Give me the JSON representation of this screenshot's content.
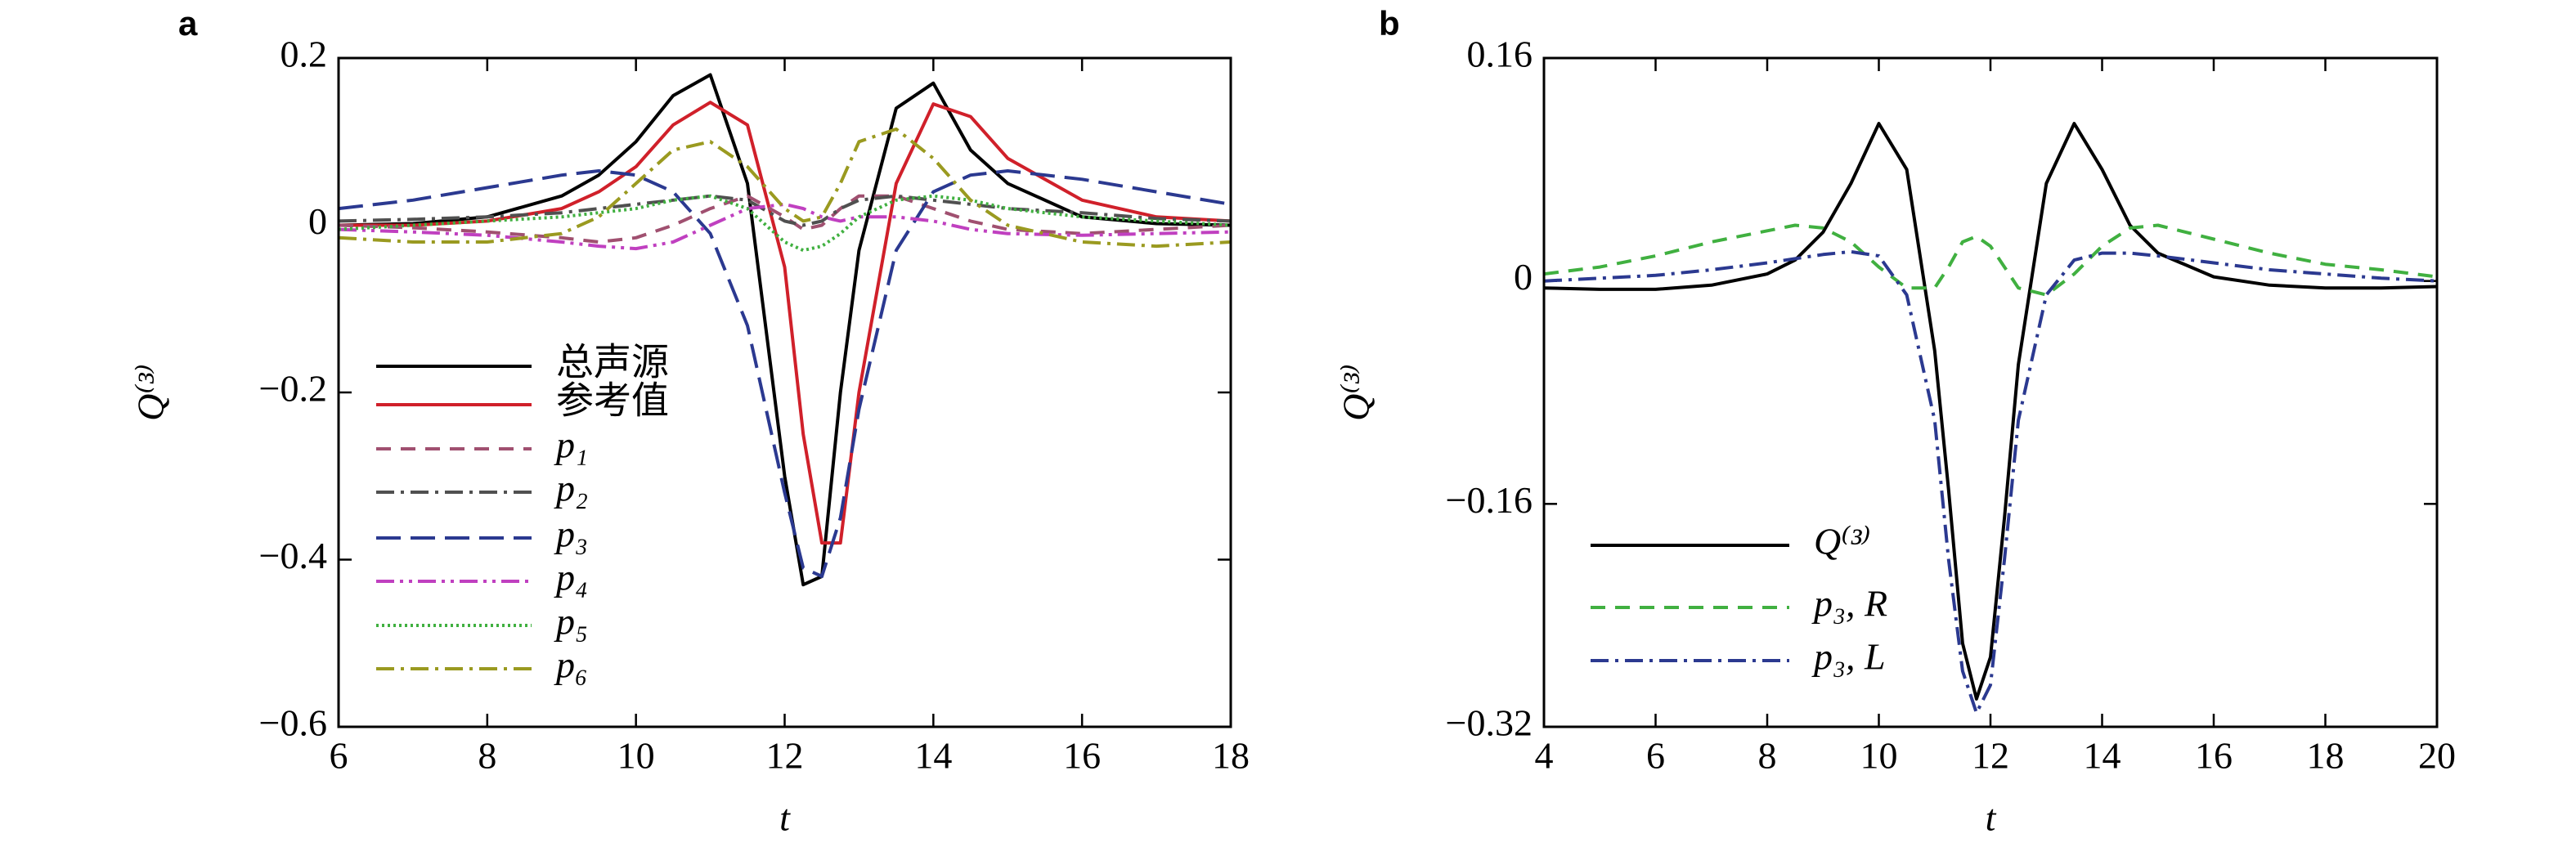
{
  "chart_data": [
    {
      "type": "line",
      "panel_label": "a",
      "xlabel": "t",
      "ylabel": "Q⁽³⁾",
      "x": [
        6,
        7,
        8,
        9,
        9.5,
        10,
        10.5,
        11,
        11.5,
        12,
        12.25,
        12.5,
        12.75,
        13,
        13.5,
        14,
        14.5,
        15,
        16,
        17,
        18
      ],
      "xlim": [
        6,
        18
      ],
      "xticks": [
        6,
        8,
        10,
        12,
        14,
        16,
        18
      ],
      "ylim": [
        -0.6,
        0.2
      ],
      "yticks": [
        {
          "value": -0.6,
          "label": "−0.6"
        },
        {
          "value": -0.4,
          "label": "−0.4"
        },
        {
          "value": -0.2,
          "label": "−0.2"
        },
        0,
        0.2
      ],
      "legend": "lower left",
      "series": [
        {
          "name": "总声源",
          "color": "#000000",
          "line_style": "solid",
          "values": [
            0,
            0.002,
            0.01,
            0.035,
            0.06,
            0.1,
            0.155,
            0.18,
            0.05,
            -0.3,
            -0.43,
            -0.42,
            -0.2,
            -0.03,
            0.14,
            0.17,
            0.09,
            0.05,
            0.01,
            0.002,
            0
          ]
        },
        {
          "name": "参考值",
          "color": "#d0202a",
          "line_style": "solid",
          "values": [
            0,
            0,
            0.005,
            0.02,
            0.04,
            0.07,
            0.12,
            0.147,
            0.12,
            -0.05,
            -0.25,
            -0.38,
            -0.38,
            -0.2,
            0.05,
            0.145,
            0.13,
            0.08,
            0.03,
            0.01,
            0.005
          ]
        },
        {
          "name": "p₁",
          "color": "#a05070",
          "line_style": "dashed",
          "values": [
            0,
            -0.003,
            -0.008,
            -0.015,
            -0.02,
            -0.015,
            0,
            0.02,
            0.035,
            0.01,
            -0.005,
            0,
            0.02,
            0.035,
            0.035,
            0.02,
            0.005,
            -0.005,
            -0.01,
            -0.005,
            0
          ]
        },
        {
          "name": "p₂",
          "color": "#505050",
          "line_style": "dash-dot",
          "values": [
            0.005,
            0.007,
            0.01,
            0.015,
            0.02,
            0.025,
            0.03,
            0.035,
            0.03,
            0.005,
            0,
            0.005,
            0.02,
            0.03,
            0.035,
            0.03,
            0.025,
            0.02,
            0.015,
            0.008,
            0.005
          ]
        },
        {
          "name": "p₃",
          "color": "#2b3990",
          "line_style": "long-dash",
          "values": [
            0.02,
            0.03,
            0.045,
            0.06,
            0.065,
            0.06,
            0.04,
            -0.01,
            -0.12,
            -0.32,
            -0.41,
            -0.42,
            -0.35,
            -0.22,
            -0.03,
            0.04,
            0.06,
            0.065,
            0.055,
            0.04,
            0.025
          ]
        },
        {
          "name": "p₄",
          "color": "#c040c0",
          "line_style": "dash-dot-dot",
          "values": [
            -0.005,
            -0.008,
            -0.012,
            -0.02,
            -0.025,
            -0.028,
            -0.02,
            0,
            0.02,
            0.025,
            0.02,
            0.01,
            0.005,
            0.01,
            0.01,
            0.005,
            -0.005,
            -0.01,
            -0.012,
            -0.01,
            -0.008
          ]
        },
        {
          "name": "p₅",
          "color": "#40b040",
          "line_style": "dotted",
          "values": [
            -0.005,
            0,
            0.005,
            0.01,
            0.015,
            0.02,
            0.03,
            0.035,
            0.02,
            -0.02,
            -0.03,
            -0.025,
            -0.01,
            0.01,
            0.03,
            0.035,
            0.03,
            0.02,
            0.01,
            0.005,
            0
          ]
        },
        {
          "name": "p₆",
          "color": "#9a9a20",
          "line_style": "dash-dot",
          "values": [
            -0.015,
            -0.02,
            -0.02,
            -0.01,
            0.01,
            0.05,
            0.09,
            0.1,
            0.07,
            0.02,
            0.005,
            0.01,
            0.05,
            0.1,
            0.115,
            0.08,
            0.03,
            0,
            -0.02,
            -0.025,
            -0.02
          ]
        }
      ]
    },
    {
      "type": "line",
      "panel_label": "b",
      "xlabel": "t",
      "ylabel": "Q⁽³⁾",
      "x": [
        4,
        5,
        6,
        7,
        8,
        8.5,
        9,
        9.5,
        10,
        10.5,
        11,
        11.25,
        11.5,
        11.75,
        12,
        12.25,
        12.5,
        13,
        13.5,
        14,
        14.5,
        15,
        16,
        17,
        18,
        19,
        20
      ],
      "xlim": [
        4,
        20
      ],
      "xticks": [
        4,
        6,
        8,
        10,
        12,
        14,
        16,
        18,
        20
      ],
      "ylim": [
        -0.32,
        0.16
      ],
      "yticks": [
        {
          "value": -0.32,
          "label": "−0.32"
        },
        {
          "value": -0.16,
          "label": "−0.16"
        },
        0,
        0.16
      ],
      "legend": "lower left",
      "series": [
        {
          "name": "Q⁽³⁾",
          "color": "#000000",
          "line_style": "solid",
          "values": [
            -0.005,
            -0.006,
            -0.006,
            -0.003,
            0.005,
            0.015,
            0.035,
            0.07,
            0.113,
            0.08,
            -0.05,
            -0.15,
            -0.26,
            -0.3,
            -0.27,
            -0.17,
            -0.06,
            0.07,
            0.113,
            0.08,
            0.04,
            0.02,
            0.003,
            -0.003,
            -0.005,
            -0.005,
            -0.004
          ]
        },
        {
          "name": "p₃, R",
          "color": "#40b040",
          "line_style": "dashed",
          "values": [
            0.005,
            0.01,
            0.018,
            0.028,
            0.036,
            0.04,
            0.038,
            0.028,
            0.01,
            -0.005,
            -0.005,
            0.01,
            0.028,
            0.032,
            0.025,
            0.01,
            -0.005,
            -0.01,
            0.005,
            0.025,
            0.038,
            0.04,
            0.03,
            0.02,
            0.012,
            0.008,
            0.003
          ]
        },
        {
          "name": "p₃, L",
          "color": "#2b3990",
          "line_style": "dash-dot",
          "values": [
            0,
            0.002,
            0.004,
            0.008,
            0.013,
            0.016,
            0.019,
            0.021,
            0.018,
            -0.01,
            -0.1,
            -0.2,
            -0.28,
            -0.31,
            -0.29,
            -0.2,
            -0.1,
            -0.01,
            0.015,
            0.02,
            0.02,
            0.018,
            0.013,
            0.008,
            0.005,
            0.002,
            0
          ]
        }
      ]
    }
  ]
}
